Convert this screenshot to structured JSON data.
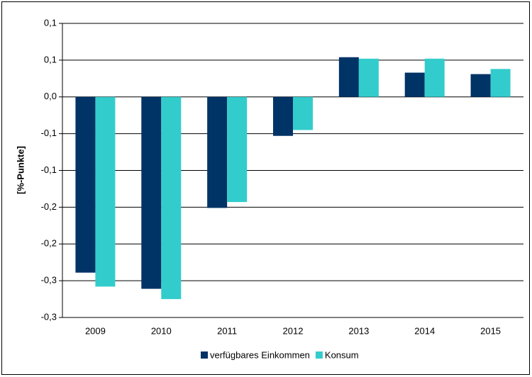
{
  "chart_data": {
    "type": "bar",
    "y_label": "[%-Punkte]",
    "categories": [
      "2009",
      "2010",
      "2011",
      "2012",
      "2013",
      "2014",
      "2015"
    ],
    "series": [
      {
        "name": "verfügbares Einkommen",
        "color": "#003366",
        "values": [
          -0.239,
          -0.261,
          -0.151,
          -0.053,
          0.054,
          0.033,
          0.031
        ]
      },
      {
        "name": "Konsum",
        "color": "#33cccc",
        "values": [
          -0.258,
          -0.275,
          -0.143,
          -0.045,
          0.052,
          0.052,
          0.038
        ]
      }
    ],
    "ylim": [
      -0.3,
      0.1
    ],
    "yticks": [
      {
        "value": 0.1,
        "label": "0,1"
      },
      {
        "value": 0.05,
        "label": "0,1"
      },
      {
        "value": 0,
        "label": "0,0"
      },
      {
        "value": -0.05,
        "label": "-0,1"
      },
      {
        "value": -0.1,
        "label": "-0,1"
      },
      {
        "value": -0.15,
        "label": "-0,2"
      },
      {
        "value": -0.2,
        "label": "-0,2"
      },
      {
        "value": -0.25,
        "label": "-0,3"
      },
      {
        "value": -0.3,
        "label": "-0,3"
      }
    ],
    "grid": true,
    "legend": "bottom"
  }
}
